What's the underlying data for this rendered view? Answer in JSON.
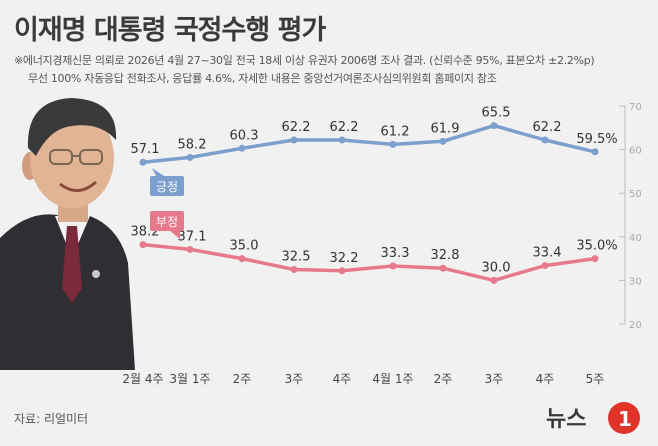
{
  "title": "이재명 대통령 국정수행 평가",
  "notes": [
    "※에너지경제신문 의뢰로 2026년 4월 27~30일 전국 18세 이상 유권자 2006명 조사 결과. (신뢰수준 95%, 표본오차 ±2.2%p)",
    "무선 100% 자동응답 전화조사, 응답률 4.6%, 자세한 내용은 중앙선거여론조사심의위원회 홈페이지 참조"
  ],
  "source": "자료: 리얼미터",
  "logo_text": "뉴스1",
  "colors": {
    "positive": "#7d9fcd",
    "negative": "#e77a8a",
    "text": "#333333",
    "axis": "#bdbdbd"
  },
  "chart_data": {
    "type": "line",
    "categories": [
      "2월 4주",
      "3월 1주",
      "2주",
      "3주",
      "4주",
      "4월 1주",
      "2주",
      "3주",
      "4주",
      "5주"
    ],
    "series": [
      {
        "name": "긍정",
        "values": [
          57.1,
          58.2,
          60.3,
          62.2,
          62.2,
          61.2,
          61.9,
          65.5,
          62.2,
          59.5
        ],
        "labels": [
          "57.1",
          "58.2",
          "60.3",
          "62.2",
          "62.2",
          "61.2",
          "61.9",
          "65.5",
          "62.2",
          "59.5%"
        ]
      },
      {
        "name": "부정",
        "values": [
          38.2,
          37.1,
          35.0,
          32.5,
          32.2,
          33.3,
          32.8,
          30.0,
          33.4,
          35.0
        ],
        "labels": [
          "38.2",
          "37.1",
          "35.0",
          "32.5",
          "32.2",
          "33.3",
          "32.8",
          "30.0",
          "33.4",
          "35.0%"
        ]
      }
    ],
    "yticks": [
      "70",
      "60",
      "50",
      "40",
      "30",
      "20"
    ],
    "ylim": [
      20,
      70
    ],
    "grid": false
  }
}
